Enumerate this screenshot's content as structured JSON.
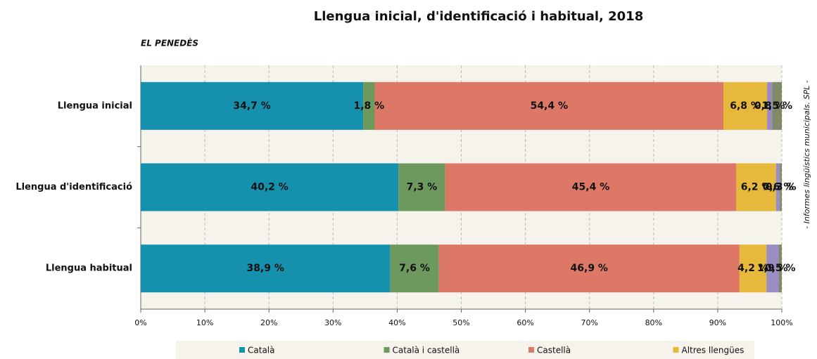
{
  "chart_data": {
    "type": "stacked-barh",
    "title": "Llengua inicial, d'identificació i habitual, 2018",
    "subtitle": "EL PENEDÈS",
    "source": "- Informes lingüístics municipals. SPL -",
    "categories": [
      "Llengua inicial",
      "Llengua d'identificació",
      "Llengua habitual"
    ],
    "series": [
      {
        "name": "Català",
        "color": "#1591ae",
        "values": [
          34.7,
          40.2,
          38.9
        ],
        "value_labels": [
          "34,7 %",
          "40,2 %",
          "38,9 %"
        ]
      },
      {
        "name": "Català i castellà",
        "color": "#6d985e",
        "values": [
          1.8,
          7.3,
          7.6
        ],
        "value_labels": [
          "1,8 %",
          "7,3 %",
          "7,6 %"
        ]
      },
      {
        "name": "Castellà",
        "color": "#dd7867",
        "values": [
          54.4,
          45.4,
          46.9
        ],
        "value_labels": [
          "54,4 %",
          "45,4 %",
          "46,9 %"
        ]
      },
      {
        "name": "Altres llengües",
        "color": "#e6b83b",
        "values": [
          6.8,
          6.2,
          4.2
        ],
        "value_labels": [
          "6,8 %",
          "6,2 %",
          "4,2 %"
        ]
      },
      {
        "color": "#9a8dc3",
        "values": [
          0.8,
          0.6,
          1.9
        ],
        "value_labels": [
          "0,8 %",
          "0,6 %",
          "1,9 %"
        ]
      },
      {
        "color": "#7e8a68",
        "values": [
          1.5,
          0.3,
          0.5
        ],
        "value_labels": [
          "1,5 %",
          "0,3 %",
          "0,5 %"
        ]
      }
    ],
    "xlim": [
      0,
      100
    ],
    "xticks": [
      {
        "value": 0,
        "label": "0%"
      },
      {
        "value": 10,
        "label": "10%"
      },
      {
        "value": 20,
        "label": "20%"
      },
      {
        "value": 30,
        "label": "30%"
      },
      {
        "value": 40,
        "label": "40%"
      },
      {
        "value": 50,
        "label": "50%"
      },
      {
        "value": 60,
        "label": "60%"
      },
      {
        "value": 70,
        "label": "70%"
      },
      {
        "value": 80,
        "label": "80%"
      },
      {
        "value": 90,
        "label": "90%"
      },
      {
        "value": 100,
        "label": "100%"
      }
    ],
    "grid": true
  }
}
